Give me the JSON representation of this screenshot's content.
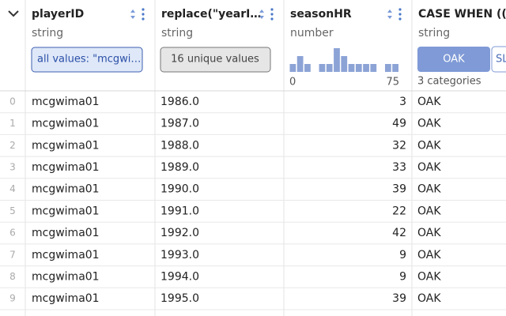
{
  "columns": [
    {
      "name": "playerID",
      "type": "string",
      "summary": "all values: \"mcgwi…"
    },
    {
      "name": "replace(\"yearI…",
      "type": "string",
      "summary": "16 unique values"
    },
    {
      "name": "seasonHR",
      "type": "number",
      "histogram": {
        "counts": [
          1,
          2,
          1,
          0,
          1,
          1,
          3,
          2,
          1,
          1,
          1,
          1,
          0,
          1,
          1
        ],
        "range": [
          0,
          75
        ]
      }
    },
    {
      "name": "CASE WHEN ((…",
      "type": "string",
      "category_buttons": [
        "OAK",
        "SL"
      ],
      "summary": "3 categories"
    }
  ],
  "row_index": [
    0,
    1,
    2,
    3,
    4,
    5,
    6,
    7,
    8,
    9
  ],
  "rows": [
    [
      "mcgwima01",
      "1986.0",
      3,
      "OAK"
    ],
    [
      "mcgwima01",
      "1987.0",
      49,
      "OAK"
    ],
    [
      "mcgwima01",
      "1988.0",
      32,
      "OAK"
    ],
    [
      "mcgwima01",
      "1989.0",
      33,
      "OAK"
    ],
    [
      "mcgwima01",
      "1990.0",
      39,
      "OAK"
    ],
    [
      "mcgwima01",
      "1991.0",
      22,
      "OAK"
    ],
    [
      "mcgwima01",
      "1992.0",
      42,
      "OAK"
    ],
    [
      "mcgwima01",
      "1993.0",
      9,
      "OAK"
    ],
    [
      "mcgwima01",
      "1994.0",
      9,
      "OAK"
    ],
    [
      "mcgwima01",
      "1995.0",
      39,
      "OAK"
    ]
  ]
}
